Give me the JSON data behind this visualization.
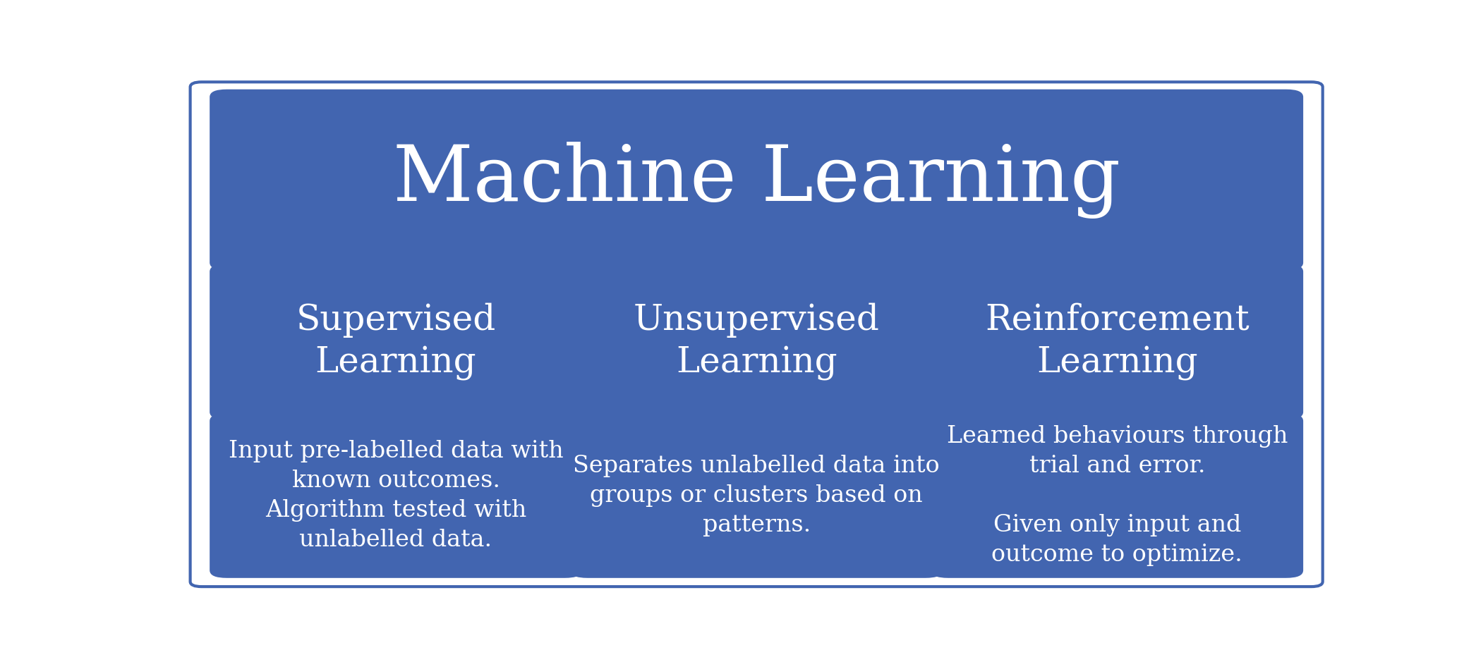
{
  "title": "Machine Learning",
  "title_fontsize": 80,
  "title_color": "#ffffff",
  "title_bg_color": "#4265b0",
  "background_color": "#ffffff",
  "outer_border_color": "#4265b0",
  "columns": [
    {
      "header": "Supervised\nLearning",
      "body": "Input pre-labelled data with\nknown outcomes.\nAlgorithm tested with\nunlabelled data.",
      "header_bg": "#4265b0",
      "body_bg": "#4265b0"
    },
    {
      "header": "Unsupervised\nLearning",
      "body": "Separates unlabelled data into\ngroups or clusters based on\npatterns.",
      "header_bg": "#4265b0",
      "body_bg": "#4265b0"
    },
    {
      "header": "Reinforcement\nLearning",
      "body": "Learned behaviours through\ntrial and error.\n\nGiven only input and\noutcome to optimize.",
      "header_bg": "#4265b0",
      "body_bg": "#4265b0"
    }
  ],
  "header_fontsize": 36,
  "body_fontsize": 24,
  "text_color": "#ffffff",
  "figsize": [
    20.92,
    9.39
  ],
  "dpi": 100
}
